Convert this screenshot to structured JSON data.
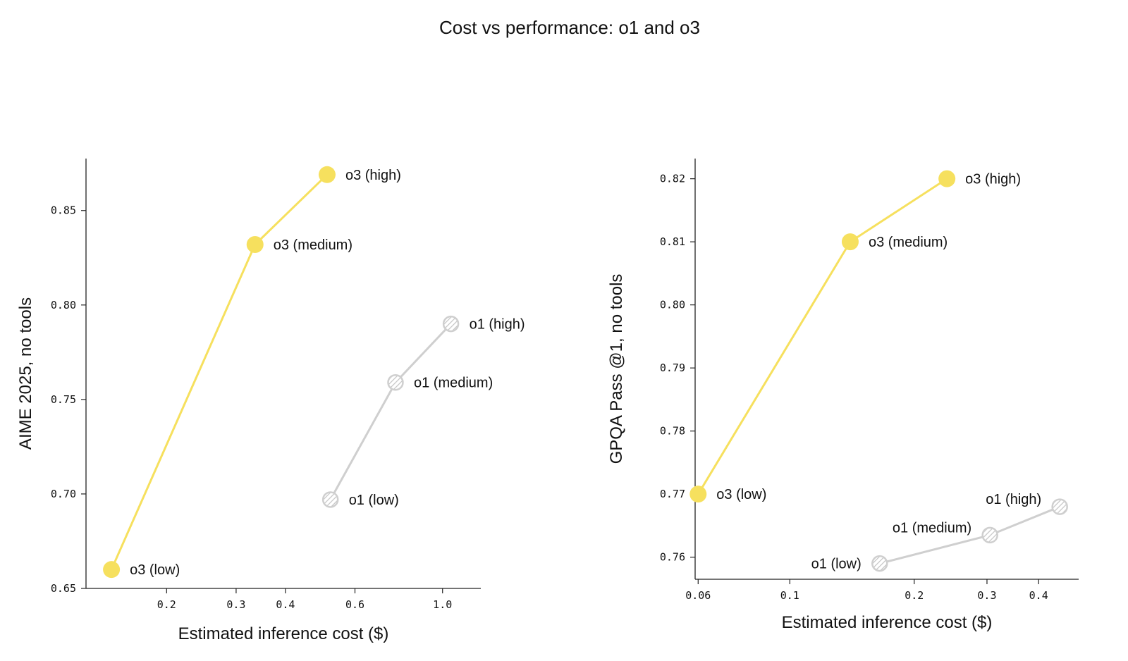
{
  "title": "Cost vs performance: o1 and o3",
  "colors": {
    "o3": "#f6e05e",
    "o1": "#cfcfcf",
    "axis": "#222222"
  },
  "chart_data": [
    {
      "type": "line",
      "title": "",
      "xlabel": "Estimated inference cost ($)",
      "ylabel": "AIME 2025, no tools",
      "xscale": "log",
      "xlim": [
        0.125,
        1.25
      ],
      "ylim": [
        0.65,
        0.8775
      ],
      "xticks": [
        0.2,
        0.3,
        0.4,
        0.6,
        1.0
      ],
      "xtick_labels": [
        "0.2",
        "0.3",
        "0.4",
        "0.6",
        "1.0"
      ],
      "yticks": [
        0.65,
        0.7,
        0.75,
        0.8,
        0.85
      ],
      "ytick_labels": [
        "0.65",
        "0.70",
        "0.75",
        "0.80",
        "0.85"
      ],
      "grid": false,
      "series": [
        {
          "name": "o3",
          "style": "solid",
          "points": [
            {
              "label": "o3 (low)",
              "x": 0.145,
              "y": 0.66,
              "label_side": "right"
            },
            {
              "label": "o3 (medium)",
              "x": 0.335,
              "y": 0.832,
              "label_side": "right"
            },
            {
              "label": "o3 (high)",
              "x": 0.51,
              "y": 0.869,
              "label_side": "right"
            }
          ]
        },
        {
          "name": "o1",
          "style": "hatched",
          "points": [
            {
              "label": "o1 (low)",
              "x": 0.52,
              "y": 0.697,
              "label_side": "right"
            },
            {
              "label": "o1 (medium)",
              "x": 0.76,
              "y": 0.759,
              "label_side": "right"
            },
            {
              "label": "o1 (high)",
              "x": 1.05,
              "y": 0.79,
              "label_side": "right"
            }
          ]
        }
      ]
    },
    {
      "type": "line",
      "title": "",
      "xlabel": "Estimated inference cost ($)",
      "ylabel": "GPQA Pass @1, no tools",
      "xscale": "log",
      "xlim": [
        0.059,
        0.5
      ],
      "ylim": [
        0.7565,
        0.8232
      ],
      "xticks": [
        0.06,
        0.1,
        0.2,
        0.3,
        0.4
      ],
      "xtick_labels": [
        "0.06",
        "0.1",
        "0.2",
        "0.3",
        "0.4"
      ],
      "yticks": [
        0.76,
        0.77,
        0.78,
        0.79,
        0.8,
        0.81,
        0.82
      ],
      "ytick_labels": [
        "0.76",
        "0.77",
        "0.78",
        "0.79",
        "0.80",
        "0.81",
        "0.82"
      ],
      "grid": false,
      "series": [
        {
          "name": "o3",
          "style": "solid",
          "points": [
            {
              "label": "o3 (low)",
              "x": 0.06,
              "y": 0.77,
              "label_side": "right"
            },
            {
              "label": "o3 (medium)",
              "x": 0.14,
              "y": 0.81,
              "label_side": "right"
            },
            {
              "label": "o3 (high)",
              "x": 0.24,
              "y": 0.82,
              "label_side": "right"
            }
          ]
        },
        {
          "name": "o1",
          "style": "hatched",
          "points": [
            {
              "label": "o1 (low)",
              "x": 0.165,
              "y": 0.759,
              "label_side": "left"
            },
            {
              "label": "o1 (medium)",
              "x": 0.305,
              "y": 0.7635,
              "label_side": "above-left"
            },
            {
              "label": "o1 (high)",
              "x": 0.45,
              "y": 0.768,
              "label_side": "above-left"
            }
          ]
        }
      ]
    }
  ]
}
